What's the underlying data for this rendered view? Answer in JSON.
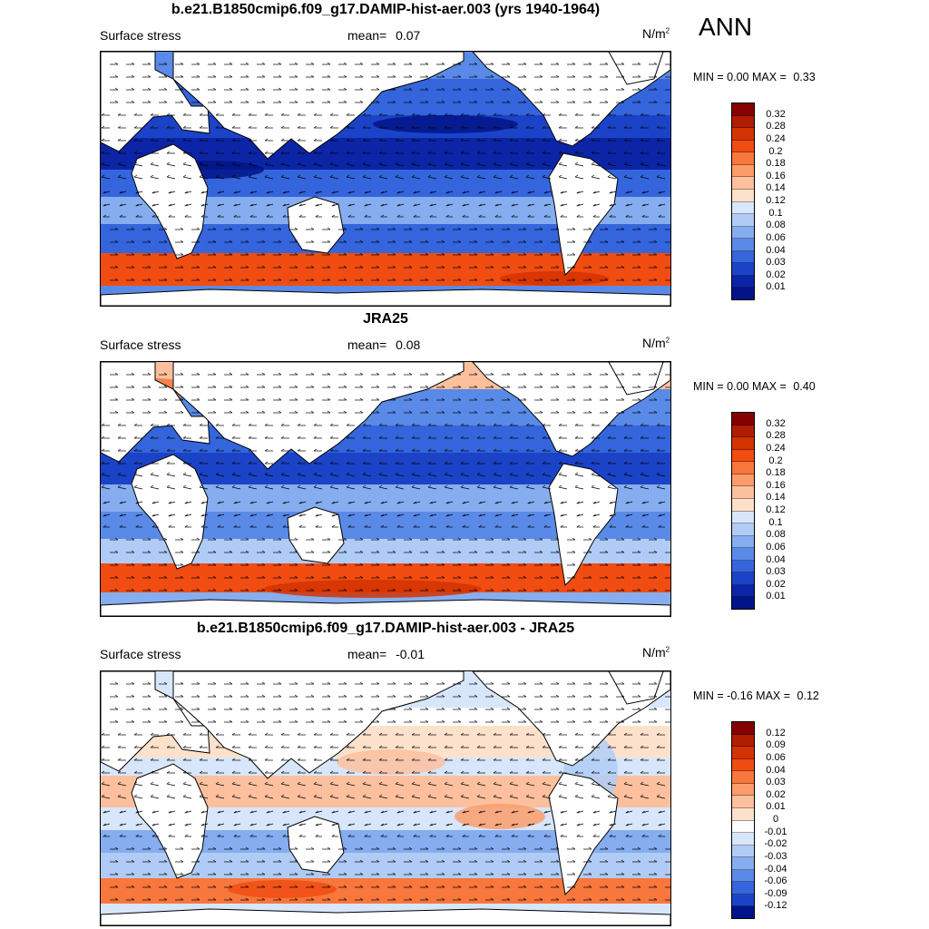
{
  "season_label": "ANN",
  "panels": [
    {
      "title": "b.e21.B1850cmip6.f09_g17.DAMIP-hist-aer.003 (yrs 1940-1964)",
      "variable": "Surface stress",
      "mean_label": "mean=",
      "mean_value": "0.07",
      "units_base": "N/m",
      "units_exp": "2",
      "min_label": "MIN =",
      "min_value": "0.00",
      "max_label": "MAX =",
      "max_value": "0.33",
      "colorbar_ticks": [
        "0.32",
        "0.28",
        "0.24",
        "0.2",
        "0.18",
        "0.16",
        "0.14",
        "0.12",
        "0.1",
        "0.08",
        "0.06",
        "0.04",
        "0.03",
        "0.02",
        "0.01"
      ],
      "map_type": "model"
    },
    {
      "title": "JRA25",
      "variable": "Surface stress",
      "mean_label": "mean=",
      "mean_value": "0.08",
      "units_base": "N/m",
      "units_exp": "2",
      "min_label": "MIN =",
      "min_value": "0.00",
      "max_label": "MAX =",
      "max_value": "0.40",
      "colorbar_ticks": [
        "0.32",
        "0.28",
        "0.24",
        "0.2",
        "0.18",
        "0.16",
        "0.14",
        "0.12",
        "0.1",
        "0.08",
        "0.06",
        "0.04",
        "0.03",
        "0.02",
        "0.01"
      ],
      "map_type": "obs"
    },
    {
      "title": "b.e21.B1850cmip6.f09_g17.DAMIP-hist-aer.003 - JRA25",
      "variable": "Surface stress",
      "mean_label": "mean=",
      "mean_value": "-0.01",
      "units_base": "N/m",
      "units_exp": "2",
      "min_label": "MIN =",
      "min_value": "-0.16",
      "max_label": "MAX =",
      "max_value": "0.12",
      "colorbar_ticks": [
        "0.12",
        "0.09",
        "0.06",
        "0.04",
        "0.03",
        "0.02",
        "0.01",
        "0",
        "-0.01",
        "-0.02",
        "-0.03",
        "-0.04",
        "-0.06",
        "-0.09",
        "-0.12"
      ],
      "map_type": "diff"
    }
  ],
  "colors": {
    "mag_scale": [
      "#850000",
      "#b01d00",
      "#d33300",
      "#f14c12",
      "#f7773c",
      "#fb9c6a",
      "#fdc09e",
      "#fee1cb",
      "#d8e6fb",
      "#b0ccf6",
      "#85adf0",
      "#5a8ae8",
      "#3465dc",
      "#1b43c8",
      "#0c25a6",
      "#021487"
    ],
    "diff_scale": [
      "#850000",
      "#b01d00",
      "#d33300",
      "#f14c12",
      "#f7773c",
      "#fb9c6a",
      "#fdc09e",
      "#fee1cb",
      "#ffffff",
      "#d8e6fb",
      "#b0ccf6",
      "#85adf0",
      "#5a8ae8",
      "#3465dc",
      "#1b43c8",
      "#021487"
    ],
    "land": "#ffffff"
  }
}
